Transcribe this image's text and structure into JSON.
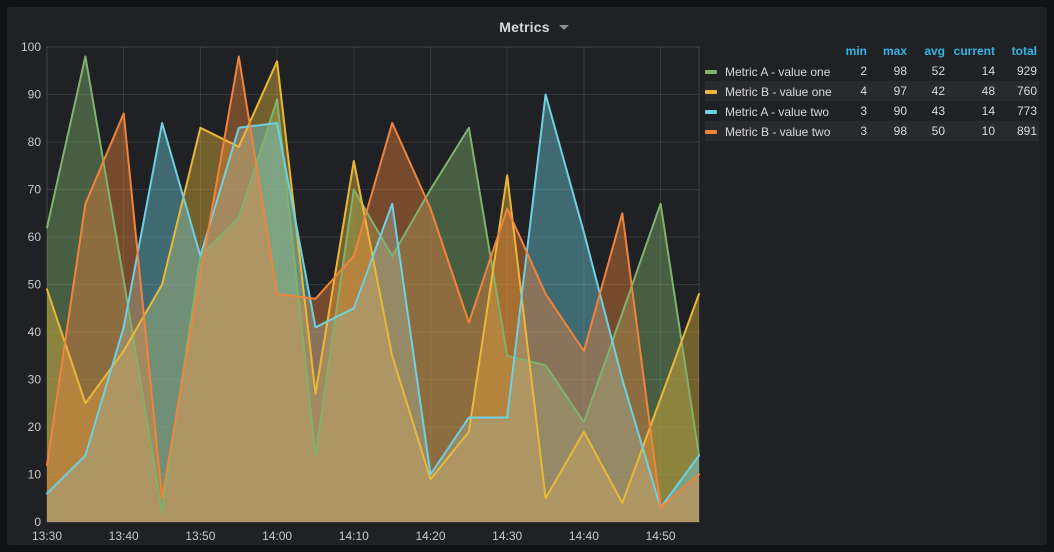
{
  "panel": {
    "title": "Metrics"
  },
  "legend": {
    "headers": [
      "min",
      "max",
      "avg",
      "current",
      "total"
    ],
    "header_color": "#33b5e5"
  },
  "chart_data": {
    "type": "area",
    "title": "Metrics",
    "x": [
      "13:30",
      "13:35",
      "13:40",
      "13:45",
      "13:50",
      "13:55",
      "14:00",
      "14:05",
      "14:10",
      "14:15",
      "14:20",
      "14:25",
      "14:30",
      "14:35",
      "14:40",
      "14:45",
      "14:50",
      "14:55"
    ],
    "series": [
      {
        "name": "Metric A - value one",
        "color": "#7EB26D",
        "values": [
          62,
          98,
          51,
          2,
          56,
          64,
          89,
          14,
          70,
          56,
          70,
          83,
          35,
          33,
          21,
          44,
          67,
          14
        ],
        "stats": {
          "min": 2,
          "max": 98,
          "avg": 52,
          "current": 14,
          "total": 929
        }
      },
      {
        "name": "Metric B - value one",
        "color": "#EAB839",
        "values": [
          49,
          25,
          36,
          50,
          83,
          79,
          97,
          27,
          76,
          35,
          9,
          19,
          73,
          5,
          19,
          4,
          26,
          48
        ],
        "stats": {
          "min": 4,
          "max": 97,
          "avg": 42,
          "current": 48,
          "total": 760
        }
      },
      {
        "name": "Metric A - value two",
        "color": "#6ED0E0",
        "values": [
          6,
          14,
          41,
          84,
          56,
          83,
          84,
          41,
          45,
          67,
          10,
          22,
          22,
          90,
          61,
          30,
          3,
          14
        ],
        "stats": {
          "min": 3,
          "max": 90,
          "avg": 43,
          "current": 14,
          "total": 773
        }
      },
      {
        "name": "Metric B - value two",
        "color": "#EF843C",
        "values": [
          12,
          67,
          86,
          5,
          52,
          98,
          48,
          47,
          56,
          84,
          66,
          42,
          66,
          48,
          36,
          65,
          3,
          10
        ],
        "stats": {
          "min": 3,
          "max": 98,
          "avg": 50,
          "current": 10,
          "total": 891
        }
      }
    ],
    "ylim": [
      0,
      100
    ],
    "y_tick_labels": [
      "0",
      "10",
      "20",
      "30",
      "40",
      "50",
      "60",
      "70",
      "80",
      "90",
      "100"
    ],
    "x_tick_labels": [
      "13:30",
      "13:40",
      "13:50",
      "14:00",
      "14:10",
      "14:20",
      "14:30",
      "14:40",
      "14:50"
    ],
    "grid": true,
    "legend_position": "right-table",
    "fill_opacity": 0.42
  }
}
